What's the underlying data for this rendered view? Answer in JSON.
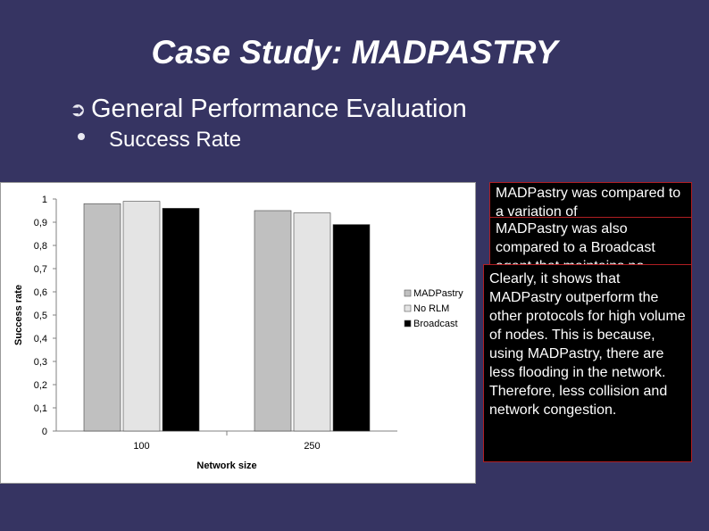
{
  "slide": {
    "title": "Case Study: MADPASTRY",
    "bullet1": "General Performance Evaluation",
    "bullet1_marker": "➲",
    "bullet2": "Success Rate"
  },
  "chart_data": {
    "type": "bar",
    "categories": [
      "100",
      "250"
    ],
    "series": [
      {
        "name": "MADPastry",
        "values": [
          0.98,
          0.95
        ],
        "color": "#c0c0c0"
      },
      {
        "name": "No RLM",
        "values": [
          0.99,
          0.94
        ],
        "color": "#e4e4e4"
      },
      {
        "name": "Broadcast",
        "values": [
          0.96,
          0.89
        ],
        "color": "#000000"
      }
    ],
    "title": "",
    "xlabel": "Network size",
    "ylabel": "Success rate",
    "ylim": [
      0,
      1
    ],
    "yticks": [
      "0",
      "0,1",
      "0,2",
      "0,3",
      "0,4",
      "0,5",
      "0,6",
      "0,7",
      "0,8",
      "0,9",
      "1"
    ],
    "legend_position": "right",
    "grid": false
  },
  "notes": {
    "box1": "MADPastry was compared to a variation of",
    "box2": "MADPastry was also compared to a Broadcast agent that maintains no",
    "box3": "Clearly, it shows that MADPastry outperform the other protocols for high volume of nodes. This is because, using MADPastry, there are less flooding in the network. Therefore, less collision and network congestion."
  }
}
